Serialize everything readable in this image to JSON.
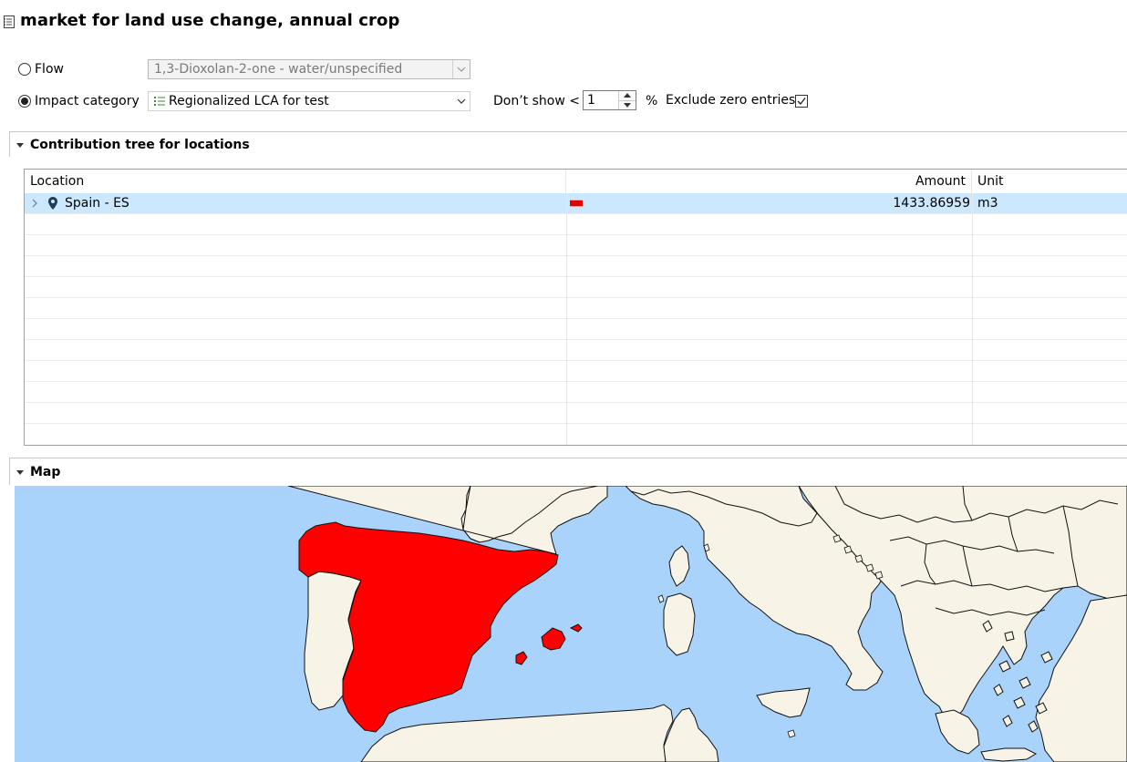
{
  "title": "market for land use change, annual crop",
  "flow": {
    "label": "Flow",
    "selected": false,
    "value": "1,3-Dioxolan-2-one - water/unspecified"
  },
  "impact_category": {
    "label": "Impact category",
    "selected": true,
    "value": "Regionalized LCA for test"
  },
  "filter": {
    "dont_show_label": "Don’t show <",
    "cutoff_value": "1",
    "percent_label": "%",
    "exclude_zero_label": "Exclude zero entries",
    "exclude_zero_checked": true
  },
  "contribution_section": {
    "title": "Contribution tree for locations",
    "columns": [
      "Location",
      "",
      "Amount",
      "Unit"
    ],
    "rows": [
      {
        "location": "Spain - ES",
        "amount": "1433.86959",
        "unit": "m3",
        "share": 1.0
      }
    ]
  },
  "map_section": {
    "title": "Map"
  },
  "colors": {
    "highlight_region": "#ff0000",
    "sea": "#aad3fb",
    "land": "#f7f3e6",
    "selected_row": "#cce8ff"
  }
}
